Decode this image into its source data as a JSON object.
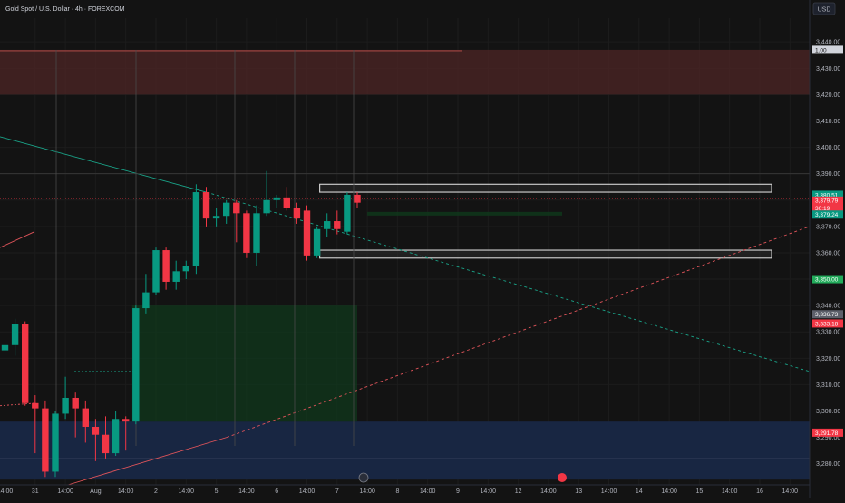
{
  "header": {
    "title": "Gold Spot / U.S. Dollar · 4h · FOREXCOM",
    "currency_button": "USD"
  },
  "chart_data": {
    "type": "candlestick",
    "title": "Gold Spot / U.S. Dollar · 4h · FOREXCOM",
    "ylim": [
      3272,
      3449
    ],
    "y_ticks": [
      3440,
      3430,
      3420,
      3410,
      3400,
      3390,
      3380,
      3370,
      3360,
      3350,
      3340,
      3330,
      3320,
      3310,
      3300,
      3290,
      3280
    ],
    "y_tick_labels": [
      "3,440.00",
      "3,430.00",
      "3,420.00",
      "3,410.00",
      "3,400.00",
      "3,390.00",
      "3,380.00",
      "3,370.00",
      "3,360.00",
      "3,350.00",
      "3,340.00",
      "3,330.00",
      "3,320.00",
      "3,310.00",
      "3,300.00",
      "3,290.00",
      "3,280.00"
    ],
    "x_ticks": [
      {
        "label": "14:00",
        "bar": 0
      },
      {
        "label": "31",
        "bar": 3
      },
      {
        "label": "14:00",
        "bar": 6
      },
      {
        "label": "Aug",
        "bar": 9
      },
      {
        "label": "14:00",
        "bar": 12
      },
      {
        "label": "2",
        "bar": 15
      },
      {
        "label": "14:00",
        "bar": 18
      },
      {
        "label": "5",
        "bar": 21
      },
      {
        "label": "14:00",
        "bar": 24
      },
      {
        "label": "6",
        "bar": 27
      },
      {
        "label": "14:00",
        "bar": 30
      },
      {
        "label": "7",
        "bar": 33
      },
      {
        "label": "14:00",
        "bar": 36
      },
      {
        "label": "8",
        "bar": 39
      },
      {
        "label": "14:00",
        "bar": 42
      },
      {
        "label": "9",
        "bar": 45
      },
      {
        "label": "14:00",
        "bar": 48
      },
      {
        "label": "12",
        "bar": 51
      },
      {
        "label": "14:00",
        "bar": 54
      },
      {
        "label": "13",
        "bar": 57
      },
      {
        "label": "14:00",
        "bar": 60
      },
      {
        "label": "14",
        "bar": 63
      },
      {
        "label": "14:00",
        "bar": 66
      },
      {
        "label": "15",
        "bar": 69
      },
      {
        "label": "14:00",
        "bar": 72
      },
      {
        "label": "16",
        "bar": 75
      },
      {
        "label": "14:00",
        "bar": 78
      }
    ],
    "candles": [
      {
        "o": 3323,
        "h": 3336,
        "l": 3319,
        "c": 3325
      },
      {
        "o": 3325,
        "h": 3335,
        "l": 3321,
        "c": 3333
      },
      {
        "o": 3333,
        "h": 3334,
        "l": 3302,
        "c": 3303
      },
      {
        "o": 3303,
        "h": 3306,
        "l": 3284,
        "c": 3301
      },
      {
        "o": 3301,
        "h": 3304,
        "l": 3275,
        "c": 3277
      },
      {
        "o": 3277,
        "h": 3300,
        "l": 3275,
        "c": 3299
      },
      {
        "o": 3299,
        "h": 3313,
        "l": 3297,
        "c": 3305
      },
      {
        "o": 3305,
        "h": 3307,
        "l": 3290,
        "c": 3301
      },
      {
        "o": 3301,
        "h": 3304,
        "l": 3288,
        "c": 3294
      },
      {
        "o": 3294,
        "h": 3297,
        "l": 3281,
        "c": 3291
      },
      {
        "o": 3291,
        "h": 3298,
        "l": 3282,
        "c": 3284
      },
      {
        "o": 3284,
        "h": 3300,
        "l": 3283,
        "c": 3297
      },
      {
        "o": 3297,
        "h": 3298,
        "l": 3285,
        "c": 3296
      },
      {
        "o": 3296,
        "h": 3340,
        "l": 3295,
        "c": 3339
      },
      {
        "o": 3339,
        "h": 3352,
        "l": 3337,
        "c": 3345
      },
      {
        "o": 3345,
        "h": 3362,
        "l": 3344,
        "c": 3361
      },
      {
        "o": 3361,
        "h": 3362,
        "l": 3346,
        "c": 3349
      },
      {
        "o": 3349,
        "h": 3357,
        "l": 3346,
        "c": 3353
      },
      {
        "o": 3353,
        "h": 3357,
        "l": 3350,
        "c": 3355
      },
      {
        "o": 3355,
        "h": 3386,
        "l": 3352,
        "c": 3383
      },
      {
        "o": 3383,
        "h": 3385,
        "l": 3370,
        "c": 3373
      },
      {
        "o": 3373,
        "h": 3377,
        "l": 3370,
        "c": 3374
      },
      {
        "o": 3374,
        "h": 3380,
        "l": 3371,
        "c": 3379
      },
      {
        "o": 3379,
        "h": 3380,
        "l": 3364,
        "c": 3375
      },
      {
        "o": 3375,
        "h": 3376,
        "l": 3358,
        "c": 3360
      },
      {
        "o": 3360,
        "h": 3378,
        "l": 3355,
        "c": 3375
      },
      {
        "o": 3375,
        "h": 3391,
        "l": 3374,
        "c": 3380
      },
      {
        "o": 3380,
        "h": 3382,
        "l": 3377,
        "c": 3381
      },
      {
        "o": 3381,
        "h": 3385,
        "l": 3376,
        "c": 3377
      },
      {
        "o": 3377,
        "h": 3379,
        "l": 3371,
        "c": 3373
      },
      {
        "o": 3376,
        "h": 3378,
        "l": 3357,
        "c": 3359
      },
      {
        "o": 3359,
        "h": 3370,
        "l": 3358,
        "c": 3369
      },
      {
        "o": 3369,
        "h": 3375,
        "l": 3366,
        "c": 3372
      },
      {
        "o": 3372,
        "h": 3376,
        "l": 3367,
        "c": 3369
      },
      {
        "o": 3368,
        "h": 3383,
        "l": 3367,
        "c": 3382
      },
      {
        "o": 3382,
        "h": 3383,
        "l": 3377,
        "c": 3379
      }
    ],
    "zones": {
      "supply_zone": [
        3420,
        3437
      ],
      "upper_box": [
        3383,
        3386
      ],
      "lower_box": [
        3358,
        3361
      ],
      "long_position": {
        "entry": 3296,
        "target": 3340
      },
      "blue_zone": [
        3274,
        3296
      ]
    },
    "price_tags": [
      {
        "label": "1.00",
        "price": 3437
      },
      {
        "label": "3,380.51",
        "price": 3382
      },
      {
        "label": "3,379.79",
        "price": 3379.8
      },
      {
        "label": "30:19",
        "price": 3377
      },
      {
        "label": "3,379.24",
        "price": 3374.5
      },
      {
        "label": "3,350.00",
        "price": 3350
      },
      {
        "label": "3,336.73",
        "price": 3336.7
      },
      {
        "label": "3,333.18",
        "price": 3333.2
      },
      {
        "label": "3,291.78",
        "price": 3291.8
      }
    ],
    "colors": {
      "up": "#089981",
      "down": "#f23645",
      "background": "#131313",
      "grid": "#1e1e1e",
      "axis_text": "#b2b5be",
      "supply_zone": "#5c2b2b",
      "blue_zone": "#1a2a4a",
      "long_zone": "#0f2f1a"
    }
  }
}
